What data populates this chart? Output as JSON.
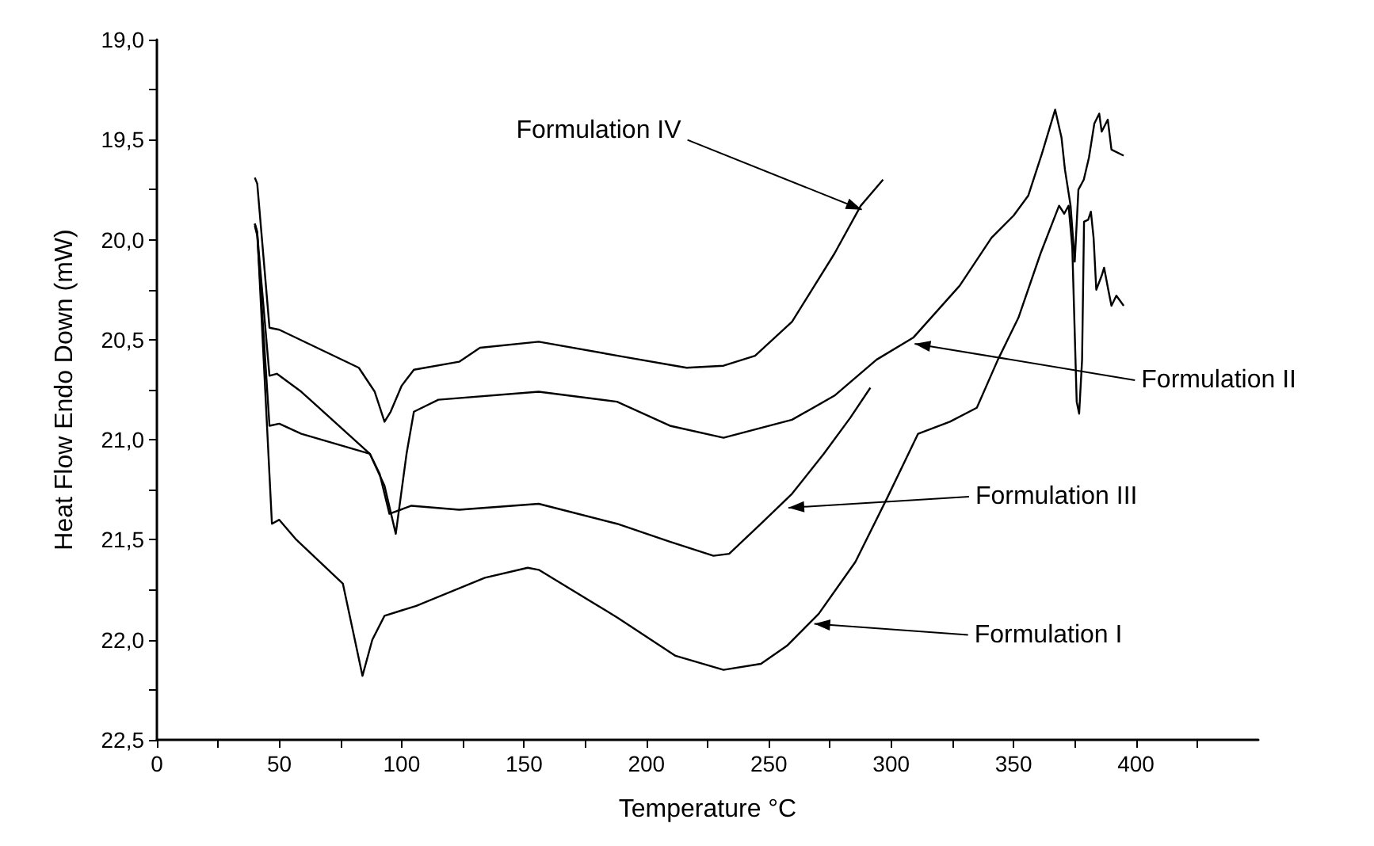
{
  "chart_data": {
    "type": "line",
    "xlabel": "Temperature °C",
    "ylabel": "Heat Flow Endo Down (mW)",
    "xlim": [
      0,
      450
    ],
    "xticks": [
      0,
      {
        "value": 25,
        "label": null
      },
      50,
      {
        "value": 75,
        "label": null
      },
      100,
      {
        "value": 125,
        "label": null
      },
      150,
      {
        "value": 175,
        "label": null
      },
      200,
      {
        "value": 225,
        "label": null
      },
      250,
      {
        "value": 275,
        "label": null
      },
      300,
      {
        "value": 325,
        "label": null
      },
      350,
      {
        "value": 375,
        "label": null
      },
      400,
      {
        "value": 425,
        "label": null
      }
    ],
    "ylim": [
      22.5,
      19.0
    ],
    "yticks": [
      {
        "value": 19.0,
        "label": "19,0"
      },
      {
        "value": 19.25,
        "label": null
      },
      {
        "value": 19.5,
        "label": "19,5"
      },
      {
        "value": 19.75,
        "label": null
      },
      {
        "value": 20.0,
        "label": "20,0"
      },
      {
        "value": 20.25,
        "label": null
      },
      {
        "value": 20.5,
        "label": "20,5"
      },
      {
        "value": 20.75,
        "label": null
      },
      {
        "value": 21.0,
        "label": "21,0"
      },
      {
        "value": 21.25,
        "label": null
      },
      {
        "value": 21.5,
        "label": "21,5"
      },
      {
        "value": 21.75,
        "label": null
      },
      {
        "value": 22.0,
        "label": "22,0"
      },
      {
        "value": 22.25,
        "label": null
      },
      {
        "value": 22.5,
        "label": "22,5"
      }
    ],
    "series": [
      {
        "color": "#000000",
        "x": [
          40,
          41,
          46,
          50,
          82.5,
          89,
          93,
          95.5,
          100,
          105,
          123.5,
          132,
          156,
          188.3,
          216.4,
          231.5,
          244.4,
          259.5,
          276.8,
          287.6,
          296.7
        ],
        "values": [
          19.69,
          19.72,
          20.44,
          20.45,
          20.64,
          20.76,
          20.91,
          20.86,
          20.73,
          20.65,
          20.61,
          20.54,
          20.51,
          20.58,
          20.64,
          20.63,
          20.58,
          20.41,
          20.07,
          19.83,
          19.7
        ]
      },
      {
        "color": "#000000",
        "x": [
          40,
          41,
          46,
          49,
          59,
          87,
          93,
          97.6,
          102,
          105,
          115,
          156,
          188,
          209.6,
          231.5,
          259.5,
          276.8,
          294,
          309,
          328,
          341,
          350,
          356,
          361.6,
          367,
          369.6,
          371,
          373.3,
          375,
          376.5,
          378.7,
          380.8,
          383,
          385,
          386,
          388.5,
          390,
          395
        ],
        "values": [
          19.92,
          19.97,
          20.68,
          20.67,
          20.76,
          21.07,
          21.23,
          21.47,
          21.07,
          20.86,
          20.8,
          20.76,
          20.81,
          20.93,
          20.99,
          20.9,
          20.78,
          20.6,
          20.49,
          20.23,
          19.99,
          19.88,
          19.78,
          19.57,
          19.35,
          19.49,
          19.65,
          19.83,
          20.11,
          19.75,
          19.7,
          19.59,
          19.42,
          19.37,
          19.46,
          19.4,
          19.55,
          19.58
        ]
      },
      {
        "color": "#000000",
        "x": [
          40,
          41,
          46,
          50,
          59,
          87,
          91,
          95,
          104,
          123.5,
          156,
          188,
          209.6,
          227.4,
          233.8,
          246.8,
          259.5,
          272.5,
          283.3,
          291.5
        ],
        "values": [
          19.93,
          19.98,
          20.93,
          20.92,
          20.97,
          21.07,
          21.17,
          21.37,
          21.33,
          21.35,
          21.32,
          21.42,
          21.51,
          21.58,
          21.57,
          21.42,
          21.27,
          21.07,
          20.89,
          20.74
        ]
      },
      {
        "color": "#000000",
        "x": [
          40,
          41,
          47,
          50,
          57,
          76,
          80,
          84,
          88,
          93,
          106,
          134,
          151.5,
          156,
          188.3,
          211.9,
          231.5,
          246.8,
          257.4,
          270.4,
          285.4,
          298.4,
          311,
          324,
          335,
          343.6,
          352,
          361,
          368.6,
          370.7,
          372.5,
          374,
          375.8,
          376.8,
          378,
          378.8,
          380.5,
          381.6,
          382.7,
          383.8,
          386,
          387,
          388.7,
          390,
          392,
          395
        ],
        "values": [
          19.92,
          19.96,
          21.42,
          21.4,
          21.5,
          21.72,
          21.95,
          22.18,
          22.0,
          21.88,
          21.83,
          21.69,
          21.64,
          21.65,
          21.89,
          22.08,
          22.15,
          22.12,
          22.03,
          21.87,
          21.61,
          21.29,
          20.97,
          20.91,
          20.84,
          20.6,
          20.39,
          20.07,
          19.83,
          19.87,
          19.83,
          20.04,
          20.81,
          20.87,
          20.6,
          19.91,
          19.9,
          19.86,
          19.99,
          20.25,
          20.18,
          20.14,
          20.25,
          20.33,
          20.28,
          20.33
        ]
      }
    ],
    "annotations": [
      {
        "text": "Formulation IV",
        "x": 288,
        "y": 19.85
      },
      {
        "text": "Formulation II",
        "x": 309.6,
        "y": 20.52
      },
      {
        "text": "Formulation III",
        "x": 258,
        "y": 21.34
      },
      {
        "text": "Formulation I",
        "x": 268.6,
        "y": 21.92
      }
    ]
  }
}
